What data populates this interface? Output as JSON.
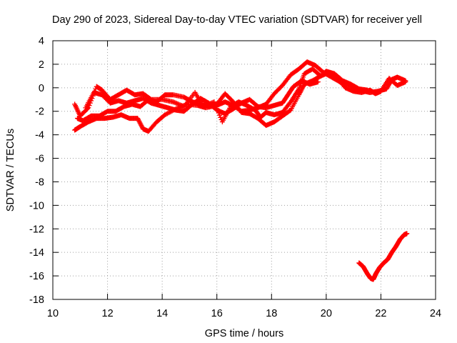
{
  "chart_data": {
    "type": "scatter",
    "title": "Day 290 of 2023, Sidereal Day-to-day VTEC variation (SDTVAR) for receiver yell",
    "xlabel": "GPS time / hours",
    "ylabel": "SDTVAR / TECUs",
    "xlim": [
      10,
      24
    ],
    "ylim": [
      -18,
      4
    ],
    "xticks": [
      10,
      12,
      14,
      16,
      18,
      20,
      22,
      24
    ],
    "yticks": [
      4,
      2,
      0,
      -2,
      -4,
      -6,
      -8,
      -10,
      -12,
      -14,
      -16,
      -18
    ],
    "grid": true,
    "marker": "plus",
    "series": [
      {
        "name": "SDTVAR",
        "color": "#ff0000",
        "segments": [
          {
            "points": [
              [
                10.8,
                -3.6
              ],
              [
                11.0,
                -3.3
              ],
              [
                11.3,
                -2.9
              ],
              [
                11.6,
                -2.6
              ],
              [
                11.9,
                -2.6
              ],
              [
                12.2,
                -2.5
              ],
              [
                12.5,
                -2.3
              ],
              [
                12.8,
                -2.6
              ],
              [
                13.1,
                -2.6
              ],
              [
                13.3,
                -3.5
              ],
              [
                13.5,
                -3.7
              ],
              [
                13.8,
                -2.9
              ],
              [
                14.1,
                -2.3
              ],
              [
                14.5,
                -1.8
              ],
              [
                14.9,
                -1.4
              ],
              [
                15.3,
                -1.5
              ],
              [
                15.6,
                -1.7
              ],
              [
                16.0,
                -1.5
              ],
              [
                16.3,
                -1.2
              ],
              [
                16.6,
                -1.5
              ],
              [
                16.9,
                -2.0
              ],
              [
                17.2,
                -1.9
              ],
              [
                17.5,
                -1.7
              ],
              [
                17.8,
                -1.4
              ],
              [
                18.1,
                -0.5
              ],
              [
                18.4,
                0.2
              ],
              [
                18.7,
                1.1
              ],
              [
                19.0,
                1.6
              ],
              [
                19.3,
                2.2
              ],
              [
                19.6,
                1.9
              ],
              [
                19.9,
                1.3
              ],
              [
                20.2,
                0.9
              ],
              [
                20.5,
                0.5
              ],
              [
                20.8,
                0.3
              ],
              [
                21.1,
                -0.1
              ],
              [
                21.4,
                -0.3
              ],
              [
                21.6,
                -0.4
              ],
              [
                21.9,
                -0.3
              ],
              [
                22.2,
                -0.1
              ],
              [
                22.4,
                0.7
              ],
              [
                22.6,
                0.9
              ],
              [
                22.9,
                0.6
              ]
            ]
          },
          {
            "points": [
              [
                10.8,
                -1.4
              ],
              [
                11.0,
                -2.4
              ],
              [
                11.3,
                -1.7
              ],
              [
                11.6,
                0.1
              ],
              [
                11.8,
                -0.2
              ],
              [
                12.1,
                -1.0
              ],
              [
                12.4,
                -0.6
              ],
              [
                12.7,
                -0.2
              ],
              [
                13.0,
                -0.6
              ],
              [
                13.3,
                -0.5
              ],
              [
                13.6,
                -1.0
              ],
              [
                14.0,
                -1.0
              ],
              [
                14.4,
                -1.2
              ],
              [
                14.8,
                -1.6
              ],
              [
                15.2,
                -0.4
              ],
              [
                15.5,
                -1.6
              ],
              [
                15.9,
                -1.2
              ],
              [
                16.2,
                -2.9
              ],
              [
                16.5,
                -1.6
              ],
              [
                16.8,
                -1.2
              ],
              [
                17.1,
                -1.5
              ],
              [
                17.4,
                -1.9
              ],
              [
                17.6,
                -2.5
              ],
              [
                17.8,
                -2.1
              ],
              [
                18.1,
                -2.3
              ],
              [
                18.4,
                -2.1
              ],
              [
                18.7,
                -1.2
              ],
              [
                19.0,
                -0.1
              ],
              [
                19.2,
                1.2
              ],
              [
                19.5,
                1.6
              ],
              [
                19.8,
                1.0
              ],
              [
                20.1,
                1.3
              ],
              [
                20.4,
                0.8
              ],
              [
                20.7,
                0.0
              ],
              [
                21.0,
                -0.3
              ],
              [
                21.3,
                -0.4
              ],
              [
                21.6,
                -0.2
              ],
              [
                21.8,
                -0.5
              ],
              [
                22.0,
                -0.3
              ],
              [
                22.3,
                0.8
              ],
              [
                22.6,
                0.2
              ],
              [
                22.9,
                0.5
              ]
            ]
          },
          {
            "points": [
              [
                10.9,
                -2.6
              ],
              [
                11.1,
                -2.8
              ],
              [
                11.4,
                -2.4
              ],
              [
                11.7,
                -2.4
              ],
              [
                12.0,
                -2.0
              ],
              [
                12.3,
                -2.0
              ],
              [
                12.6,
                -1.6
              ],
              [
                12.9,
                -1.4
              ],
              [
                13.2,
                -1.6
              ],
              [
                13.5,
                -1.0
              ],
              [
                13.8,
                -1.2
              ],
              [
                14.1,
                -0.6
              ],
              [
                14.4,
                -0.6
              ],
              [
                14.8,
                -0.8
              ],
              [
                15.1,
                -1.2
              ],
              [
                15.4,
                -1.4
              ],
              [
                15.7,
                -1.6
              ],
              [
                16.0,
                -1.4
              ],
              [
                16.3,
                -0.5
              ],
              [
                16.6,
                -1.2
              ],
              [
                16.9,
                -2.1
              ],
              [
                17.2,
                -2.2
              ],
              [
                17.5,
                -2.6
              ],
              [
                17.8,
                -3.2
              ],
              [
                18.1,
                -2.9
              ],
              [
                18.4,
                -2.4
              ],
              [
                18.7,
                -1.9
              ],
              [
                19.0,
                -0.6
              ],
              [
                19.2,
                0.3
              ],
              [
                19.5,
                0.6
              ],
              [
                19.8,
                1.0
              ],
              [
                20.0,
                1.4
              ],
              [
                20.3,
                1.2
              ],
              [
                20.6,
                0.6
              ],
              [
                20.9,
                0.3
              ],
              [
                21.2,
                -0.1
              ],
              [
                21.5,
                -0.2
              ]
            ]
          },
          {
            "points": [
              [
                11.2,
                -1.7
              ],
              [
                11.5,
                -0.4
              ],
              [
                11.8,
                -0.6
              ],
              [
                12.1,
                -1.3
              ],
              [
                12.4,
                -1.1
              ],
              [
                12.7,
                -1.3
              ],
              [
                13.0,
                -1.1
              ],
              [
                13.3,
                -0.9
              ],
              [
                13.6,
                -1.3
              ],
              [
                13.9,
                -1.5
              ],
              [
                14.2,
                -1.7
              ],
              [
                14.5,
                -1.9
              ],
              [
                14.8,
                -2.0
              ],
              [
                15.1,
                -1.4
              ],
              [
                15.4,
                -0.9
              ],
              [
                15.7,
                -1.3
              ],
              [
                16.0,
                -1.9
              ],
              [
                16.3,
                -2.2
              ],
              [
                16.6,
                -1.8
              ],
              [
                16.9,
                -1.3
              ],
              [
                17.2,
                -1.0
              ],
              [
                17.5,
                -1.6
              ],
              [
                17.8,
                -1.7
              ],
              [
                18.1,
                -1.5
              ],
              [
                18.4,
                -1.3
              ],
              [
                18.6,
                -0.6
              ],
              [
                18.8,
                0.1
              ],
              [
                19.1,
                0.6
              ],
              [
                19.4,
                0.3
              ],
              [
                19.7,
                0.5
              ]
            ]
          },
          {
            "points": [
              [
                21.2,
                -14.9
              ],
              [
                21.35,
                -15.2
              ],
              [
                21.5,
                -15.8
              ],
              [
                21.62,
                -16.2
              ],
              [
                21.72,
                -16.3
              ],
              [
                21.82,
                -15.8
              ],
              [
                21.95,
                -15.3
              ],
              [
                22.1,
                -14.9
              ],
              [
                22.25,
                -14.6
              ],
              [
                22.4,
                -14.0
              ],
              [
                22.55,
                -13.5
              ],
              [
                22.7,
                -12.9
              ],
              [
                22.85,
                -12.5
              ],
              [
                22.95,
                -12.4
              ]
            ]
          }
        ]
      }
    ]
  }
}
